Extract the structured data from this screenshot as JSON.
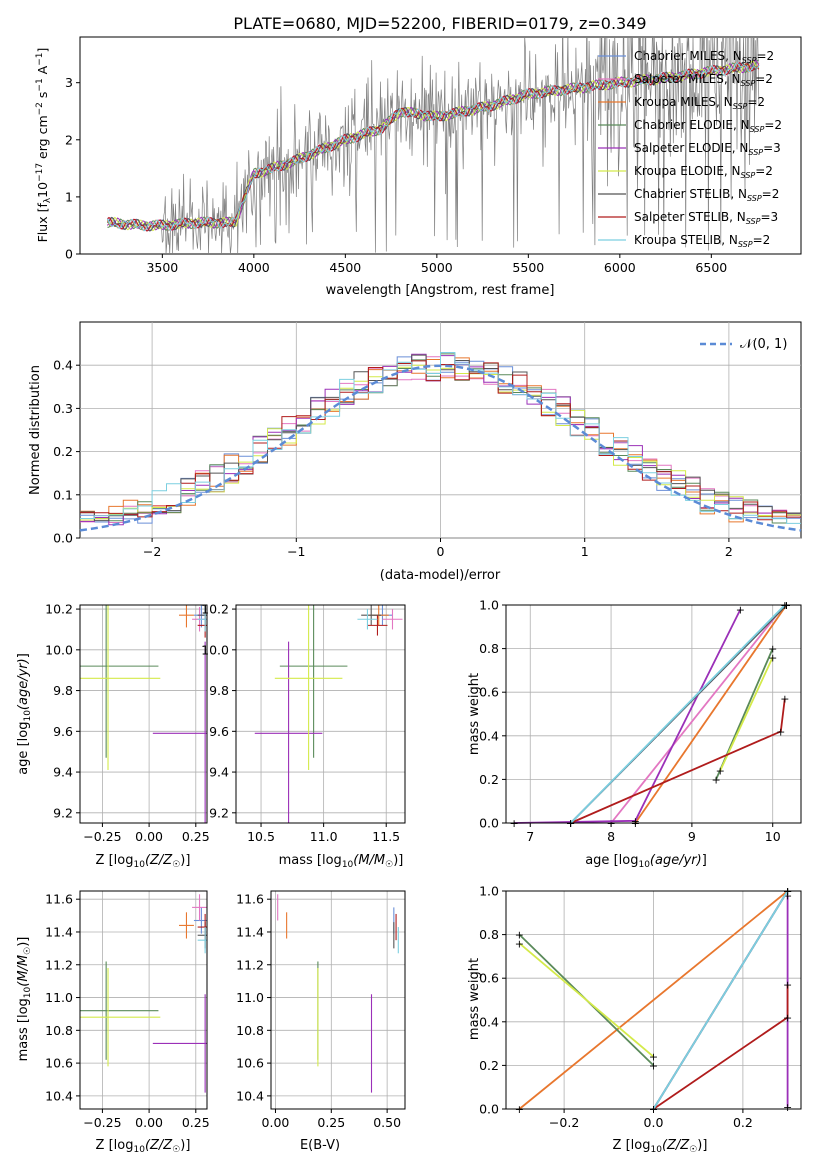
{
  "figure_title": "PLATE=0680, MJD=52200, FIBERID=0179, z=0.349",
  "colors": {
    "Chabrier MILES": "#6a8fd8",
    "Salpeter MILES": "#e377c2",
    "Kroupa MILES": "#e8772e",
    "Chabrier ELODIE": "#5a8a5a",
    "Salpeter ELODIE": "#9b30b8",
    "Kroupa ELODIE": "#d4ea4a",
    "Chabrier STELIB": "#555555",
    "Salpeter STELIB": "#b01c1c",
    "Kroupa STELIB": "#7ccfe0",
    "data": "#7f7f7f",
    "normal": "#5b8bd6"
  },
  "chart_data": [
    {
      "type": "line",
      "id": "spectrum",
      "title": "",
      "xlabel": "wavelength [Angstrom, rest frame]",
      "ylabel": "Flux [f",
      "ylabel_full": "Flux [f_λ 10^-17 erg cm^-2 s^-1 A^-1]",
      "xlim": [
        3050,
        6990
      ],
      "ylim": [
        0,
        3.8
      ],
      "xticks": [
        3500,
        4000,
        4500,
        5000,
        5500,
        6000,
        6500
      ],
      "xticklabels": [
        "3500",
        "4000",
        "4500",
        "5000",
        "5500",
        "6000",
        "6500"
      ],
      "yticks": [
        0,
        1,
        2,
        3
      ],
      "yticklabels": [
        "0",
        "1",
        "2",
        "3"
      ],
      "grid": false,
      "legend": "top-right",
      "legend_entries": [
        {
          "label": "Chabrier MILES, N",
          "ssp": "SSP",
          "tail": "=2",
          "series": "Chabrier MILES"
        },
        {
          "label": "Salpeter MILES, N",
          "ssp": "SSP",
          "tail": "=2",
          "series": "Salpeter MILES"
        },
        {
          "label": "Kroupa MILES, N",
          "ssp": "SSP",
          "tail": "=2",
          "series": "Kroupa MILES"
        },
        {
          "label": "Chabrier ELODIE, N",
          "ssp": "SSP",
          "tail": "=2",
          "series": "Chabrier ELODIE"
        },
        {
          "label": "Salpeter ELODIE, N",
          "ssp": "SSP",
          "tail": "=3",
          "series": "Salpeter ELODIE"
        },
        {
          "label": "Kroupa ELODIE, N",
          "ssp": "SSP",
          "tail": "=2",
          "series": "Kroupa ELODIE"
        },
        {
          "label": "Chabrier STELIB, N",
          "ssp": "SSP",
          "tail": "=2",
          "series": "Chabrier STELIB"
        },
        {
          "label": "Salpeter STELIB, N",
          "ssp": "SSP",
          "tail": "=3",
          "series": "Salpeter STELIB"
        },
        {
          "label": "Kroupa STELIB, N",
          "ssp": "SSP",
          "tail": "=2",
          "series": "Kroupa STELIB"
        }
      ],
      "model_trend": {
        "x": [
          3200,
          3400,
          3500,
          3700,
          3900,
          3950,
          4000,
          4200,
          4500,
          4700,
          4800,
          5000,
          5300,
          5500,
          6000,
          6300,
          6500,
          6750
        ],
        "y": [
          0.55,
          0.5,
          0.5,
          0.55,
          0.55,
          1.0,
          1.4,
          1.6,
          2.0,
          2.2,
          2.5,
          2.4,
          2.6,
          2.8,
          3.0,
          3.1,
          3.2,
          3.3
        ]
      }
    },
    {
      "type": "line",
      "id": "residuals",
      "xlabel": "(data-model)/error",
      "ylabel": "Normed distribution",
      "xlim": [
        -2.5,
        2.5
      ],
      "ylim": [
        0,
        0.5
      ],
      "xticks": [
        -2,
        -1,
        0,
        1,
        2
      ],
      "xticklabels": [
        "−2",
        "−1",
        "0",
        "1",
        "2"
      ],
      "yticks": [
        0,
        0.1,
        0.2,
        0.3,
        0.4
      ],
      "yticklabels": [
        "0.0",
        "0.1",
        "0.2",
        "0.3",
        "0.4"
      ],
      "grid": true,
      "legend": "top-right",
      "legend_label": "𝒩(0, 1)",
      "bin_width": 0.1
    },
    {
      "type": "scatter",
      "id": "age-vs-z",
      "xlabel": "Z [log",
      "ylabel": "age  [log",
      "xlim": [
        -0.37,
        0.31
      ],
      "ylim": [
        9.15,
        10.22
      ],
      "xticks": [
        -0.25,
        0,
        0.25
      ],
      "xticklabels": [
        "−0.25",
        "0.00",
        "0.25"
      ],
      "yticks": [
        9.2,
        9.4,
        9.6,
        9.8,
        10.0,
        10.2
      ],
      "yticklabels": [
        "9.2",
        "9.4",
        "9.6",
        "9.8",
        "10.0",
        "10.2"
      ],
      "grid": true
    },
    {
      "type": "scatter",
      "id": "age-vs-mass",
      "xlabel": "mass [log",
      "ylabel": "",
      "xlim": [
        10.3,
        11.65
      ],
      "ylim": [
        9.15,
        10.22
      ],
      "xticks": [
        10.5,
        11.0,
        11.5
      ],
      "xticklabels": [
        "10.5",
        "11.0",
        "11.5"
      ],
      "yticks": [
        9.2,
        9.4,
        9.6,
        9.8,
        10.0,
        10.2
      ],
      "yticklabels": [
        "9.2",
        "9.4",
        "9.6",
        "9.8",
        "10.0",
        "10.2"
      ],
      "grid": true
    },
    {
      "type": "line",
      "id": "massweight-vs-age",
      "xlabel": "age  [log",
      "ylabel": "mass weight",
      "xlim": [
        6.7,
        10.35
      ],
      "ylim": [
        0,
        1
      ],
      "xticks": [
        7,
        8,
        9,
        10
      ],
      "xticklabels": [
        "7",
        "8",
        "9",
        "10"
      ],
      "yticks": [
        0,
        0.2,
        0.4,
        0.6,
        0.8,
        1.0
      ],
      "yticklabels": [
        "0.0",
        "0.2",
        "0.4",
        "0.6",
        "0.8",
        "1.0"
      ],
      "grid": true
    },
    {
      "type": "scatter",
      "id": "mass-vs-z",
      "xlabel": "Z [log",
      "ylabel": "mass [log",
      "xlim": [
        -0.37,
        0.31
      ],
      "ylim": [
        10.32,
        11.65
      ],
      "xticks": [
        -0.25,
        0,
        0.25
      ],
      "xticklabels": [
        "−0.25",
        "0.00",
        "0.25"
      ],
      "yticks": [
        10.4,
        10.6,
        10.8,
        11.0,
        11.2,
        11.4,
        11.6
      ],
      "yticklabels": [
        "10.4",
        "10.6",
        "10.8",
        "11.0",
        "11.2",
        "11.4",
        "11.6"
      ],
      "grid": true
    },
    {
      "type": "scatter",
      "id": "mass-vs-ebv",
      "xlabel": "E(B-V)",
      "ylabel": "",
      "xlim": [
        -0.02,
        0.58
      ],
      "ylim": [
        10.32,
        11.65
      ],
      "xticks": [
        0,
        0.25,
        0.5
      ],
      "xticklabels": [
        "0.00",
        "0.25",
        "0.50"
      ],
      "yticks": [
        10.4,
        10.6,
        10.8,
        11.0,
        11.2,
        11.4,
        11.6
      ],
      "yticklabels": [
        "10.4",
        "10.6",
        "10.8",
        "11.0",
        "11.2",
        "11.4",
        "11.6"
      ],
      "grid": true
    },
    {
      "type": "line",
      "id": "massweight-vs-z",
      "xlabel": "Z [log",
      "ylabel": "mass weight",
      "xlim": [
        -0.33,
        0.33
      ],
      "ylim": [
        0,
        1
      ],
      "xticks": [
        -0.2,
        0,
        0.2
      ],
      "xticklabels": [
        "−0.2",
        "0.0",
        "0.2"
      ],
      "yticks": [
        0,
        0.2,
        0.4,
        0.6,
        0.8,
        1.0
      ],
      "yticklabels": [
        "0.0",
        "0.2",
        "0.4",
        "0.6",
        "0.8",
        "1.0"
      ],
      "grid": true
    }
  ],
  "model_points": {
    "Chabrier MILES": {
      "age": [
        10.17,
        10.17
      ],
      "Z": [
        0.28,
        0.3
      ],
      "mass": 11.47,
      "ebv": 0.53,
      "weight_by_age": [
        [
          7.5,
          0.0
        ],
        [
          10.17,
          1.0
        ]
      ],
      "weight_by_z": [
        [
          0.0,
          0.0
        ],
        [
          0.3,
          1.0
        ]
      ]
    },
    "Salpeter MILES": {
      "age": [
        10.15,
        10.15
      ],
      "Z": [
        0.27,
        0.3
      ],
      "mass": 11.55,
      "ebv": 0.01,
      "weight_by_age": [
        [
          8.0,
          0.0
        ],
        [
          10.15,
          1.0
        ]
      ],
      "weight_by_z": [
        [
          0.0,
          0.0
        ],
        [
          0.3,
          1.0
        ]
      ]
    },
    "Kroupa MILES": {
      "age": [
        10.17,
        10.17
      ],
      "Z": [
        0.2,
        0.3
      ],
      "mass": 11.44,
      "ebv": 0.05,
      "weight_by_age": [
        [
          8.3,
          0.0
        ],
        [
          10.17,
          1.0
        ]
      ],
      "weight_by_z": [
        [
          -0.3,
          0.0
        ],
        [
          0.3,
          1.0
        ]
      ]
    },
    "Chabrier ELODIE": {
      "age": 9.92,
      "Z": -0.23,
      "mass": 10.92,
      "ebv": 0.19,
      "weight_by_age": [
        [
          9.3,
          0.2
        ],
        [
          10.0,
          0.8
        ]
      ],
      "weight_by_z": [
        [
          0.0,
          0.2
        ],
        [
          -0.3,
          0.8
        ]
      ]
    },
    "Salpeter ELODIE": {
      "age": 9.59,
      "Z": 0.3,
      "mass": 10.72,
      "ebv": 0.43,
      "weight_by_age": [
        [
          6.8,
          0.0
        ],
        [
          8.3,
          0.01
        ],
        [
          9.6,
          0.98
        ]
      ],
      "weight_by_z": [
        [
          0.3,
          0.01
        ],
        [
          0.3,
          0.98
        ]
      ]
    },
    "Kroupa ELODIE": {
      "age": 9.86,
      "Z": -0.22,
      "mass": 10.88,
      "ebv": 0.19,
      "weight_by_age": [
        [
          9.35,
          0.24
        ],
        [
          10.0,
          0.76
        ]
      ],
      "weight_by_z": [
        [
          0.0,
          0.24
        ],
        [
          -0.3,
          0.76
        ]
      ]
    },
    "Chabrier STELIB": {
      "age": 10.17,
      "Z": 0.3,
      "mass": 11.38,
      "ebv": 0.53,
      "weight_by_age": [
        [
          7.5,
          0.0
        ],
        [
          10.17,
          1.0
        ]
      ],
      "weight_by_z": [
        [
          0.0,
          0.0
        ],
        [
          0.3,
          1.0
        ]
      ]
    },
    "Salpeter STELIB": {
      "age": 10.12,
      "Z": 0.3,
      "mass": 11.43,
      "ebv": 0.54,
      "weight_by_age": [
        [
          7.5,
          0.0
        ],
        [
          10.1,
          0.42
        ],
        [
          10.15,
          0.57
        ]
      ],
      "weight_by_z": [
        [
          0.0,
          0.0
        ],
        [
          0.3,
          0.42
        ],
        [
          0.3,
          0.57
        ]
      ]
    },
    "Kroupa STELIB": {
      "age": 10.15,
      "Z": 0.3,
      "mass": 11.35,
      "ebv": 0.55,
      "weight_by_age": [
        [
          7.5,
          0.0
        ],
        [
          10.15,
          1.0
        ]
      ],
      "weight_by_z": [
        [
          0.0,
          0.0
        ],
        [
          0.3,
          1.0
        ]
      ]
    }
  }
}
